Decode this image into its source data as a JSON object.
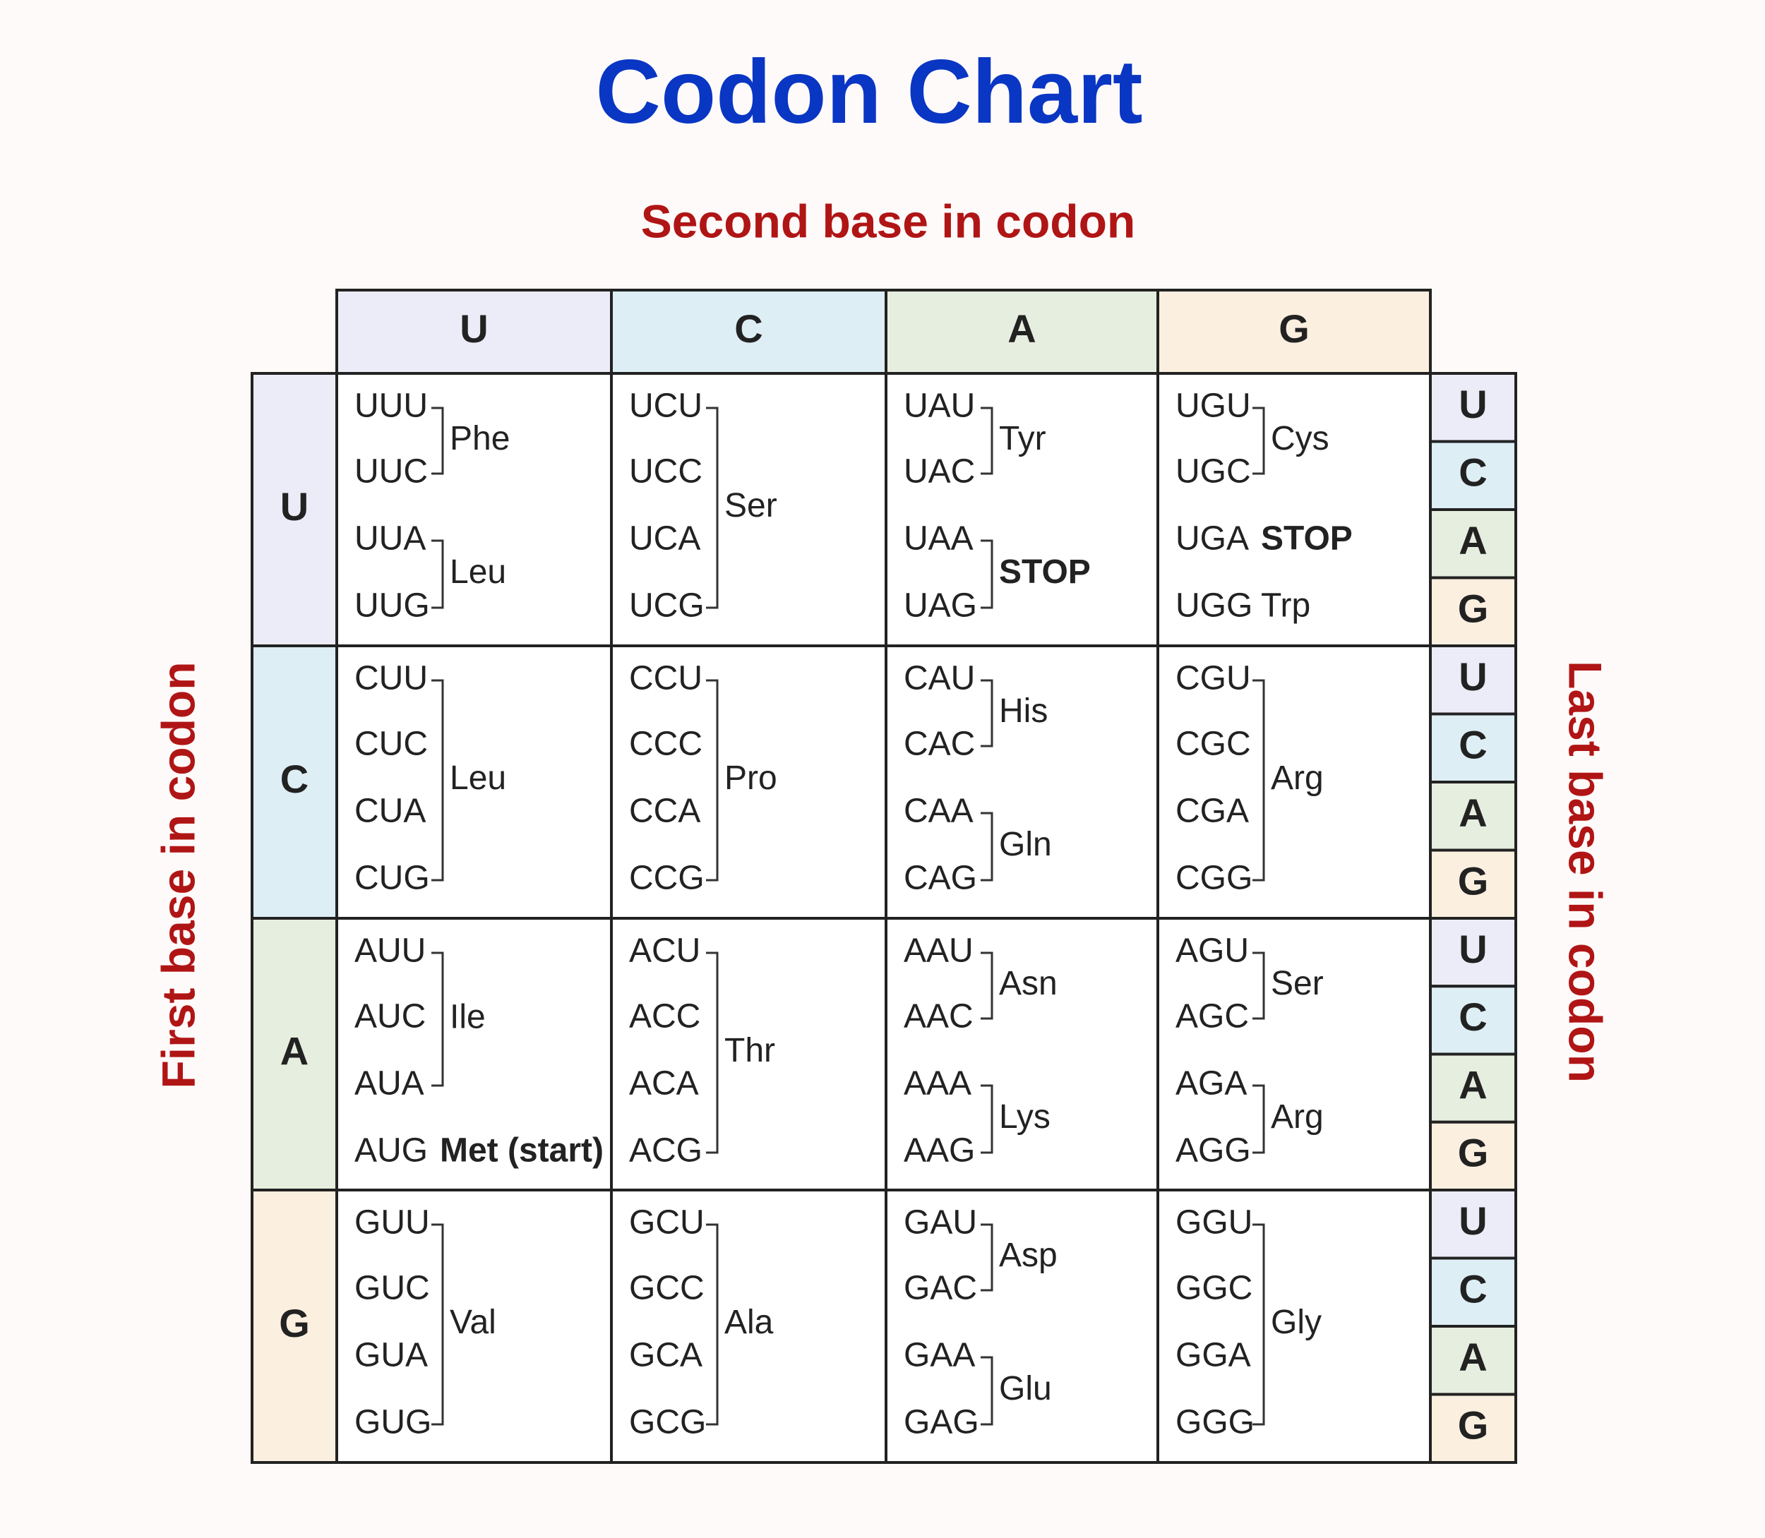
{
  "title": "Codon Chart",
  "second_base_label": "Second base in codon",
  "first_base_label": "First base in codon",
  "last_base_label": "Last base in codon",
  "columns": [
    "U",
    "C",
    "A",
    "G"
  ],
  "rows": [
    {
      "base": "U",
      "third_bases": [
        "U",
        "C",
        "A",
        "G"
      ],
      "cells": [
        {
          "groups": [
            {
              "amino_acid": "Phe",
              "codons": [
                "UUU",
                "UUC"
              ]
            },
            {
              "amino_acid": "Leu",
              "codons": [
                "UUA",
                "UUG"
              ]
            }
          ]
        },
        {
          "groups": [
            {
              "amino_acid": "Ser",
              "codons": [
                "UCU",
                "UCC",
                "UCA",
                "UCG"
              ]
            }
          ]
        },
        {
          "groups": [
            {
              "amino_acid": "Tyr",
              "codons": [
                "UAU",
                "UAC"
              ]
            },
            {
              "amino_acid": "STOP",
              "codons": [
                "UAA",
                "UAG"
              ],
              "color": "#c43b3b"
            }
          ]
        },
        {
          "groups": [
            {
              "amino_acid": "Cys",
              "codons": [
                "UGU",
                "UGC"
              ]
            },
            {
              "amino_acid": "STOP",
              "codons": [
                "UGA"
              ],
              "color": "#c43b3b"
            },
            {
              "amino_acid": "Trp",
              "codons": [
                "UGG"
              ]
            }
          ]
        }
      ]
    },
    {
      "base": "C",
      "third_bases": [
        "U",
        "C",
        "A",
        "G"
      ],
      "cells": [
        {
          "groups": [
            {
              "amino_acid": "Leu",
              "codons": [
                "CUU",
                "CUC",
                "CUA",
                "CUG"
              ]
            }
          ]
        },
        {
          "groups": [
            {
              "amino_acid": "Pro",
              "codons": [
                "CCU",
                "CCC",
                "CCA",
                "CCG"
              ]
            }
          ]
        },
        {
          "groups": [
            {
              "amino_acid": "His",
              "codons": [
                "CAU",
                "CAC"
              ]
            },
            {
              "amino_acid": "Gln",
              "codons": [
                "CAA",
                "CAG"
              ]
            }
          ]
        },
        {
          "groups": [
            {
              "amino_acid": "Arg",
              "codons": [
                "CGU",
                "CGC",
                "CGA",
                "CGG"
              ]
            }
          ]
        }
      ]
    },
    {
      "base": "A",
      "third_bases": [
        "U",
        "C",
        "A",
        "G"
      ],
      "cells": [
        {
          "groups": [
            {
              "amino_acid": "Ile",
              "codons": [
                "AUU",
                "AUC",
                "AUA"
              ]
            },
            {
              "amino_acid": "Met (start)",
              "codons": [
                "AUG"
              ],
              "color": "#6a9a55"
            }
          ]
        },
        {
          "groups": [
            {
              "amino_acid": "Thr",
              "codons": [
                "ACU",
                "ACC",
                "ACA",
                "ACG"
              ]
            }
          ]
        },
        {
          "groups": [
            {
              "amino_acid": "Asn",
              "codons": [
                "AAU",
                "AAC"
              ]
            },
            {
              "amino_acid": "Lys",
              "codons": [
                "AAA",
                "AAG"
              ]
            }
          ]
        },
        {
          "groups": [
            {
              "amino_acid": "Ser",
              "codons": [
                "AGU",
                "AGC"
              ]
            },
            {
              "amino_acid": "Arg",
              "codons": [
                "AGA",
                "AGG"
              ]
            }
          ]
        }
      ]
    },
    {
      "base": "G",
      "third_bases": [
        "U",
        "C",
        "A",
        "G"
      ],
      "cells": [
        {
          "groups": [
            {
              "amino_acid": "Val",
              "codons": [
                "GUU",
                "GUC",
                "GUA",
                "GUG"
              ]
            }
          ]
        },
        {
          "groups": [
            {
              "amino_acid": "Ala",
              "codons": [
                "GCU",
                "GCC",
                "GCA",
                "GCG"
              ]
            }
          ]
        },
        {
          "groups": [
            {
              "amino_acid": "Asp",
              "codons": [
                "GAU",
                "GAC"
              ]
            },
            {
              "amino_acid": "Glu",
              "codons": [
                "GAA",
                "GAG"
              ]
            }
          ]
        },
        {
          "groups": [
            {
              "amino_acid": "Gly",
              "codons": [
                "GGU",
                "GGC",
                "GGA",
                "GGG"
              ]
            }
          ]
        }
      ]
    }
  ]
}
